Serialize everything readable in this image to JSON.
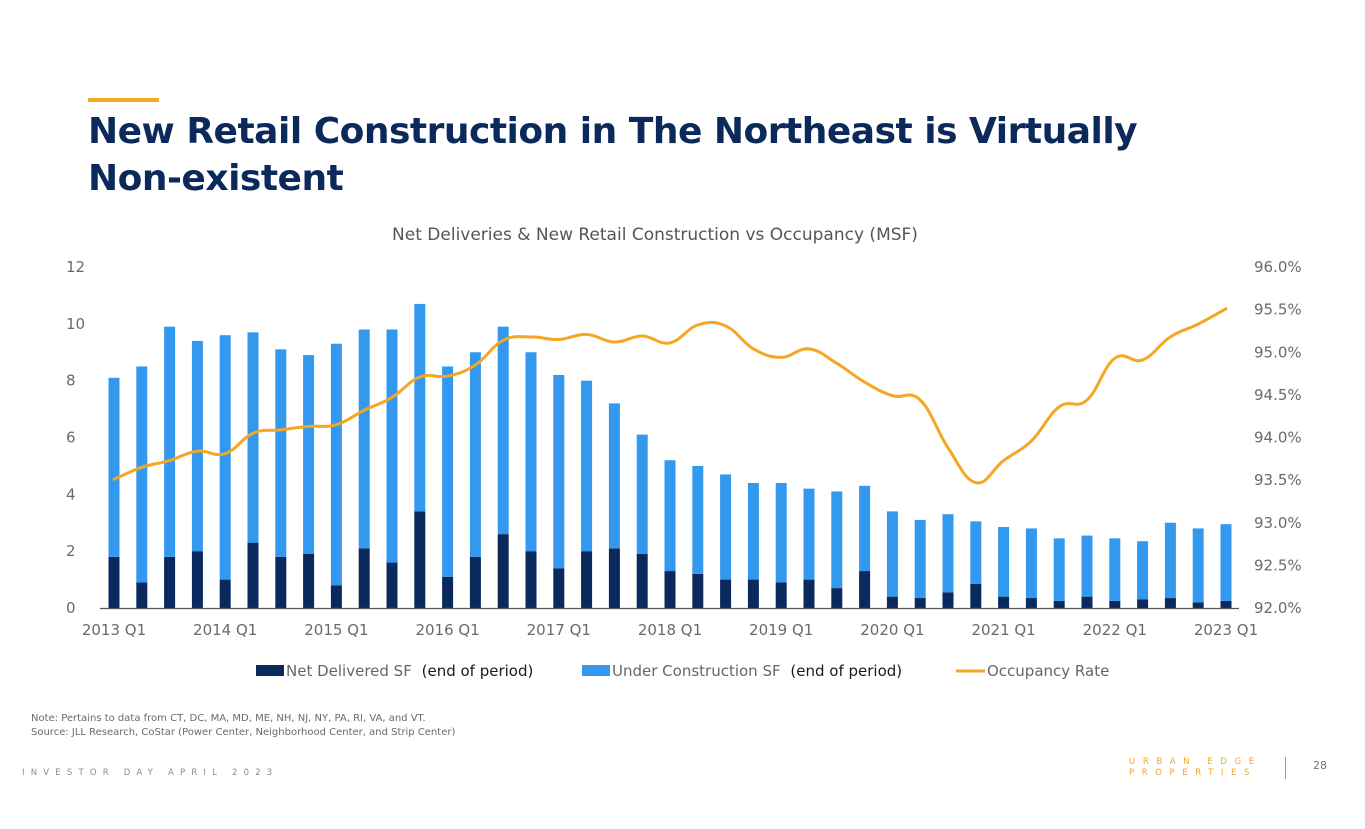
{
  "header": {
    "title": "New Retail Construction in The Northeast is Virtually Non-existent"
  },
  "colors": {
    "accent": "#f5a623",
    "title": "#0b2a5b",
    "net_delivered": "#0a2a5e",
    "under_construction": "#3399ee",
    "occupancy": "#f5a623"
  },
  "chart_data": {
    "type": "bar",
    "stacked": true,
    "title": "Net Deliveries & New Retail Construction vs Occupancy (MSF)",
    "xlabel": "",
    "ylabel": "",
    "ylim": [
      0,
      12
    ],
    "y_ticks": [
      "0",
      "2",
      "4",
      "6",
      "8",
      "10",
      "12"
    ],
    "y2lim": [
      92.0,
      96.0
    ],
    "y2_ticks": [
      "92.0%",
      "92.5%",
      "93.0%",
      "93.5%",
      "94.0%",
      "94.5%",
      "95.0%",
      "95.5%",
      "96.0%"
    ],
    "grid": false,
    "legend_position": "bottom",
    "categories": [
      "2013 Q1",
      "2013 Q2",
      "2013 Q3",
      "2013 Q4",
      "2014 Q1",
      "2014 Q2",
      "2014 Q3",
      "2014 Q4",
      "2015 Q1",
      "2015 Q2",
      "2015 Q3",
      "2015 Q4",
      "2016 Q1",
      "2016 Q2",
      "2016 Q3",
      "2016 Q4",
      "2017 Q1",
      "2017 Q2",
      "2017 Q3",
      "2017 Q4",
      "2018 Q1",
      "2018 Q2",
      "2018 Q3",
      "2018 Q4",
      "2019 Q1",
      "2019 Q2",
      "2019 Q3",
      "2019 Q4",
      "2020 Q1",
      "2020 Q2",
      "2020 Q3",
      "2020 Q4",
      "2021 Q1",
      "2021 Q2",
      "2021 Q3",
      "2021 Q4",
      "2022 Q1",
      "2022 Q2",
      "2022 Q3",
      "2022 Q4",
      "2023 Q1"
    ],
    "x_tick_labels": [
      "2013 Q1",
      "2014 Q1",
      "2015 Q1",
      "2016 Q1",
      "2017 Q1",
      "2018 Q1",
      "2019 Q1",
      "2020 Q1",
      "2021 Q1",
      "2022 Q1",
      "2023 Q1"
    ],
    "series": [
      {
        "name": "Net Delivered SF",
        "name_suffix": "(end of period)",
        "type": "bar",
        "axis": "left",
        "values": [
          1.8,
          0.9,
          1.8,
          2.0,
          1.0,
          2.3,
          1.8,
          1.9,
          0.8,
          2.1,
          1.6,
          3.4,
          1.1,
          1.8,
          2.6,
          2.0,
          1.4,
          2.0,
          2.1,
          1.9,
          1.3,
          1.2,
          1.0,
          1.0,
          0.9,
          1.0,
          0.7,
          1.3,
          0.4,
          0.35,
          0.55,
          0.85,
          0.4,
          0.35,
          0.25,
          0.4,
          0.25,
          0.3,
          0.35,
          0.2,
          0.25
        ]
      },
      {
        "name": "Under Construction SF",
        "name_suffix": "(end of period)",
        "type": "bar",
        "axis": "left",
        "values": [
          6.3,
          7.6,
          8.1,
          7.4,
          8.6,
          7.4,
          7.3,
          7.0,
          8.5,
          7.7,
          8.2,
          7.3,
          7.4,
          7.2,
          7.3,
          7.0,
          6.8,
          6.0,
          5.1,
          4.2,
          3.9,
          3.8,
          3.7,
          3.4,
          3.5,
          3.2,
          3.4,
          3.0,
          3.0,
          2.75,
          2.75,
          2.2,
          2.45,
          2.45,
          2.2,
          2.15,
          2.2,
          2.05,
          2.65,
          2.6,
          2.7
        ]
      },
      {
        "name": "Occupancy Rate",
        "name_suffix": "",
        "type": "line",
        "axis": "right",
        "values": [
          93.51,
          93.65,
          93.73,
          93.84,
          93.81,
          94.05,
          94.09,
          94.13,
          94.15,
          94.32,
          94.47,
          94.71,
          94.72,
          94.85,
          95.14,
          95.18,
          95.15,
          95.21,
          95.12,
          95.19,
          95.11,
          95.32,
          95.31,
          95.04,
          94.94,
          95.04,
          94.87,
          94.65,
          94.49,
          94.44,
          93.88,
          93.47,
          93.73,
          93.96,
          94.36,
          94.44,
          94.93,
          94.91,
          95.18,
          95.33,
          95.51
        ]
      }
    ]
  },
  "notes": {
    "note": "Note: Pertains to data from CT, DC, MA, MD, ME, NH, NJ, NY, PA, RI, VA, and VT.",
    "source": "Source: JLL Research, CoStar (Power Center, Neighborhood Center, and Strip Center)"
  },
  "footer": {
    "event": "INVESTOR DAY APRIL 2023",
    "brand_line1": "URBAN EDGE",
    "brand_line2": "PROPERTIES",
    "page_number": "28"
  }
}
